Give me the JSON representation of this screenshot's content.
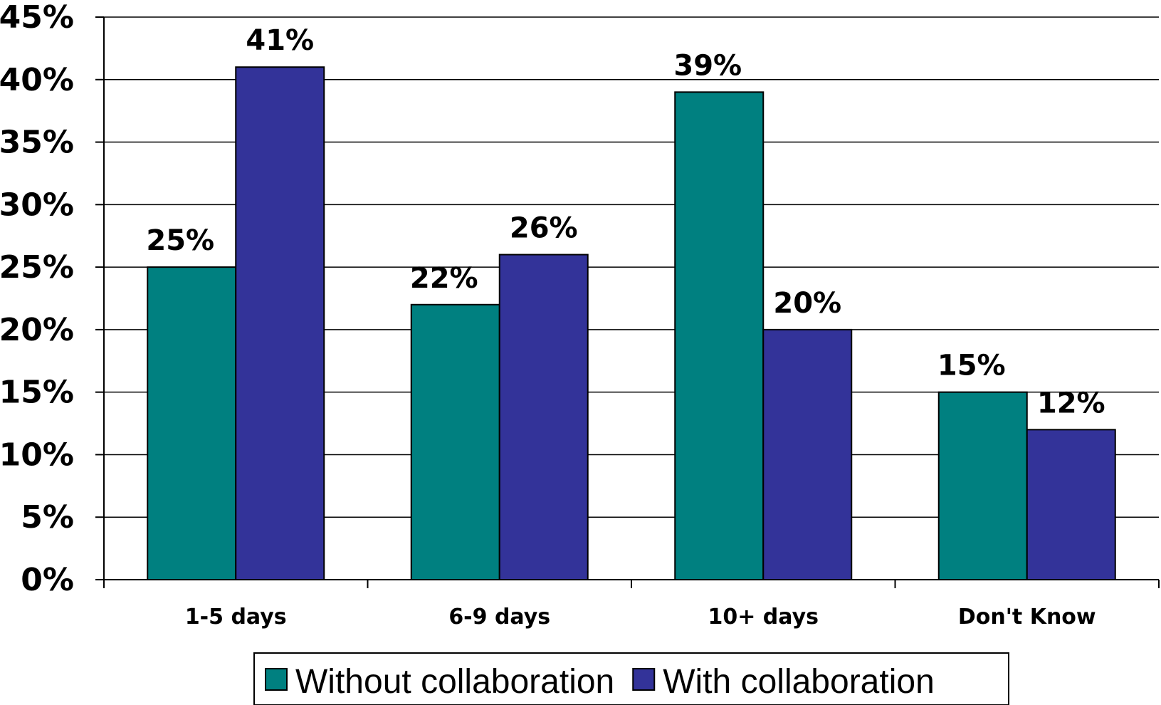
{
  "chart_data": {
    "type": "bar",
    "categories": [
      "1-5 days",
      "6-9 days",
      "10+ days",
      "Don't Know"
    ],
    "series": [
      {
        "name": "Without collaboration",
        "values": [
          25,
          22,
          39,
          15
        ],
        "color": "#008080"
      },
      {
        "name": "With collaboration",
        "values": [
          41,
          26,
          20,
          12
        ],
        "color": "#333399"
      }
    ],
    "data_labels": [
      [
        "25%",
        "22%",
        "39%",
        "15%"
      ],
      [
        "41%",
        "26%",
        "20%",
        "12%"
      ]
    ],
    "y_ticks": [
      "0%",
      "5%",
      "10%",
      "15%",
      "20%",
      "25%",
      "30%",
      "35%",
      "40%",
      "45%"
    ],
    "ylim": [
      0,
      45
    ],
    "y_step": 5,
    "grid": true,
    "legend_position": "bottom"
  }
}
